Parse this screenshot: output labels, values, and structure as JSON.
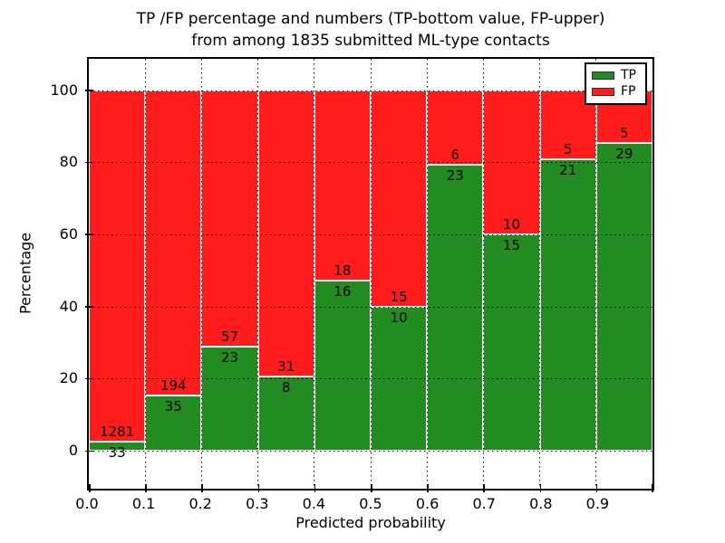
{
  "title": {
    "line1": "TP /FP percentage and numbers (TP-bottom value, FP-upper)",
    "line2": "from among 1835 submitted ML-type contacts"
  },
  "chart_data": {
    "type": "stacked_bar",
    "note": "100% stacked bars; TP count label below the TP/FP boundary, FP count label above it",
    "xlabel": "Predicted probability",
    "ylabel": "Percentage",
    "xlim": [
      0.0,
      1.0
    ],
    "ylim": [
      -11,
      109
    ],
    "bin_width": 0.1,
    "xtick_labels": [
      "0.0",
      "0.1",
      "0.2",
      "0.3",
      "0.4",
      "0.5",
      "0.6",
      "0.7",
      "0.8",
      "0.9"
    ],
    "ytick_values": [
      0,
      20,
      40,
      60,
      80,
      100
    ],
    "grid": true,
    "total_contacts": 1835,
    "categories": [
      0.0,
      0.1,
      0.2,
      0.3,
      0.4,
      0.5,
      0.6,
      0.7,
      0.8,
      0.9
    ],
    "series": [
      {
        "name": "TP",
        "color": "#228B22",
        "values": [
          33,
          35,
          23,
          8,
          16,
          10,
          23,
          15,
          21,
          29
        ]
      },
      {
        "name": "FP",
        "color": "#FF1C1C",
        "values": [
          1281,
          194,
          57,
          31,
          18,
          15,
          6,
          10,
          5,
          5
        ]
      }
    ],
    "legend": {
      "position": "upper right",
      "entries": [
        {
          "label": "TP",
          "color": "#228B22"
        },
        {
          "label": "FP",
          "color": "#FF1C1C"
        }
      ]
    }
  }
}
